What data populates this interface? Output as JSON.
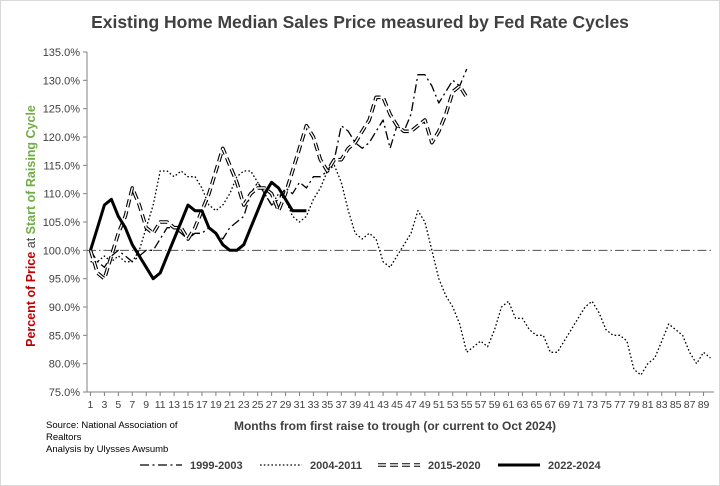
{
  "chart_data": {
    "type": "line",
    "title": "Existing Home Median Sales Price measured by Fed Rate Cycles",
    "xlabel": "Months from first raise to trough (or current to Oct 2024)",
    "ylabel": {
      "part1": "Percent of Price",
      "part2": " at ",
      "part3": "Start of Raising Cycle"
    },
    "ylim": [
      75,
      135
    ],
    "xlim": [
      1,
      90
    ],
    "y_ticks": [
      75,
      80,
      85,
      90,
      95,
      100,
      105,
      110,
      115,
      120,
      125,
      130,
      135
    ],
    "y_tick_labels": [
      "75.0%",
      "80.0%",
      "85.0%",
      "90.0%",
      "95.0%",
      "100.0%",
      "105.0%",
      "110.0%",
      "115.0%",
      "120.0%",
      "125.0%",
      "130.0%",
      "135.0%"
    ],
    "x_ticks": [
      1,
      3,
      5,
      7,
      9,
      11,
      13,
      15,
      17,
      19,
      21,
      23,
      25,
      27,
      29,
      31,
      33,
      35,
      37,
      39,
      41,
      43,
      45,
      47,
      49,
      51,
      53,
      55,
      57,
      59,
      61,
      63,
      65,
      67,
      69,
      71,
      73,
      75,
      77,
      79,
      81,
      83,
      85,
      87,
      89
    ],
    "reference_line": 100,
    "grid": false,
    "legend_position": "bottom",
    "colors": {
      "ylabel_red": "#c00000",
      "ylabel_green": "#70ad47",
      "text": "#404040",
      "axis": "#808080"
    },
    "source": [
      "Source: National Association of",
      "Realtors",
      "Analysis by Ulysses Awsumb"
    ],
    "series": [
      {
        "name": "1999-2003",
        "style": "dashdot",
        "x": [
          1,
          2,
          3,
          4,
          5,
          6,
          7,
          8,
          9,
          10,
          11,
          12,
          13,
          14,
          15,
          16,
          17,
          18,
          19,
          20,
          21,
          22,
          23,
          24,
          25,
          26,
          27,
          28,
          29,
          30,
          31,
          32,
          33,
          34,
          35,
          36,
          37,
          38,
          39,
          40,
          41,
          42,
          43,
          44,
          45,
          46,
          47,
          48,
          49,
          50,
          51,
          52,
          53,
          54,
          55
        ],
        "values": [
          100,
          98,
          97,
          99,
          100,
          99,
          98,
          99,
          100,
          100,
          102,
          104,
          104,
          103,
          102,
          103,
          103,
          104,
          103,
          102,
          104,
          105,
          106,
          110,
          112,
          110,
          108,
          109,
          111,
          110,
          112,
          111,
          113,
          113,
          114,
          116,
          122,
          121,
          119,
          118,
          119,
          121,
          123,
          118,
          122,
          121,
          124,
          131,
          131,
          129,
          126,
          128,
          130,
          129,
          132
        ]
      },
      {
        "name": "2004-2011",
        "style": "dotted",
        "x": [
          1,
          2,
          3,
          4,
          5,
          6,
          7,
          8,
          9,
          10,
          11,
          12,
          13,
          14,
          15,
          16,
          17,
          18,
          19,
          20,
          21,
          22,
          23,
          24,
          25,
          26,
          27,
          28,
          29,
          30,
          31,
          32,
          33,
          34,
          35,
          36,
          37,
          38,
          39,
          40,
          41,
          42,
          43,
          44,
          45,
          46,
          47,
          48,
          49,
          50,
          51,
          52,
          53,
          54,
          55,
          56,
          57,
          58,
          59,
          60,
          61,
          62,
          63,
          64,
          65,
          66,
          67,
          68,
          69,
          70,
          71,
          72,
          73,
          74,
          75,
          76,
          77,
          78,
          79,
          80,
          81,
          82,
          83,
          84,
          85,
          86,
          87,
          88,
          89,
          90
        ],
        "values": [
          98,
          98,
          99,
          98,
          99,
          98,
          98,
          100,
          104,
          108,
          114,
          114,
          113,
          114,
          113,
          113,
          111,
          108,
          107,
          108,
          110,
          113,
          114,
          114,
          112,
          110,
          108,
          110,
          109,
          106,
          105,
          106,
          109,
          111,
          114,
          115,
          112,
          107,
          103,
          102,
          103,
          102,
          98,
          97,
          99,
          101,
          103,
          107,
          105,
          100,
          95,
          92,
          90,
          87,
          82,
          83,
          84,
          83,
          86,
          90,
          91,
          88,
          88,
          86,
          85,
          85,
          82,
          82,
          84,
          86,
          88,
          90,
          91,
          89,
          86,
          85,
          85,
          84,
          79,
          78,
          80,
          81,
          84,
          87,
          86,
          85,
          82,
          80,
          82,
          81
        ]
      },
      {
        "name": "2015-2020",
        "style": "double",
        "x": [
          1,
          2,
          3,
          4,
          5,
          6,
          7,
          8,
          9,
          10,
          11,
          12,
          13,
          14,
          15,
          16,
          17,
          18,
          19,
          20,
          21,
          22,
          23,
          24,
          25,
          26,
          27,
          28,
          29,
          30,
          31,
          32,
          33,
          34,
          35,
          36,
          37,
          38,
          39,
          40,
          41,
          42,
          43,
          44,
          45,
          46,
          47,
          48,
          49,
          50,
          51,
          52,
          53,
          54,
          55
        ],
        "values": [
          100,
          96,
          95,
          99,
          103,
          106,
          111,
          108,
          104,
          103,
          105,
          105,
          104,
          104,
          102,
          104,
          107,
          110,
          114,
          118,
          115,
          112,
          108,
          110,
          111,
          111,
          110,
          107,
          110,
          114,
          118,
          122,
          120,
          116,
          114,
          116,
          116,
          118,
          119,
          121,
          123,
          127,
          127,
          124,
          122,
          121,
          121,
          122,
          123,
          119,
          121,
          124,
          128,
          129,
          127
        ]
      },
      {
        "name": "2022-2024",
        "style": "solid-bold",
        "x": [
          1,
          2,
          3,
          4,
          5,
          6,
          7,
          8,
          9,
          10,
          11,
          12,
          13,
          14,
          15,
          16,
          17,
          18,
          19,
          20,
          21,
          22,
          23,
          24,
          25,
          26,
          27,
          28,
          29,
          30,
          31,
          32
        ],
        "values": [
          100,
          104,
          108,
          109,
          106,
          104,
          101,
          99,
          97,
          95,
          96,
          99,
          102,
          105,
          108,
          107,
          107,
          104,
          103,
          101,
          100,
          100,
          101,
          104,
          107,
          110,
          112,
          111,
          109,
          107,
          107,
          107
        ]
      }
    ]
  }
}
